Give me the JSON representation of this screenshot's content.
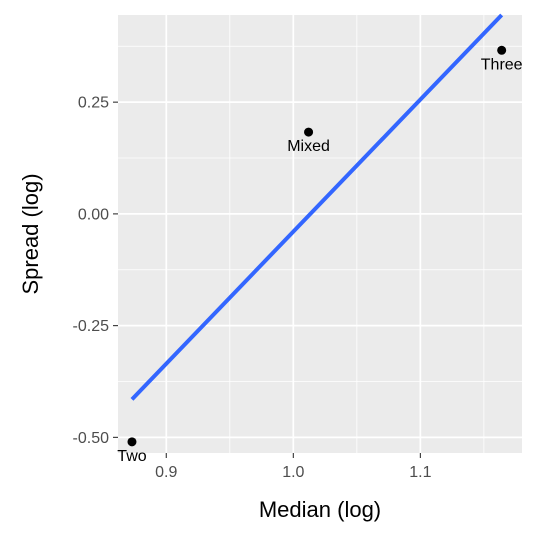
{
  "chart_data": {
    "type": "scatter",
    "xlabel": "Median (log)",
    "ylabel": "Spread (log)",
    "xlim": [
      0.862,
      1.18
    ],
    "ylim": [
      -0.535,
      0.445
    ],
    "x_ticks": [
      0.9,
      1.0,
      1.1
    ],
    "x_tick_labels": [
      "0.9",
      "1.0",
      "1.1"
    ],
    "y_ticks": [
      -0.5,
      -0.25,
      0.0,
      0.25
    ],
    "y_tick_labels": [
      "-0.50",
      "-0.25",
      "0.00",
      "0.25"
    ],
    "points": [
      {
        "label": "Two",
        "x": 0.873,
        "y": -0.51
      },
      {
        "label": "Mixed",
        "x": 1.012,
        "y": 0.183
      },
      {
        "label": "Three",
        "x": 1.164,
        "y": 0.366
      }
    ],
    "fit_line": {
      "x": [
        0.873,
        1.164
      ],
      "y": [
        -0.415,
        0.445
      ]
    },
    "grid": true,
    "colors": {
      "panel": "#ebebeb",
      "grid_major": "#ffffff",
      "fit_line": "#3366ff",
      "points": "#000000"
    }
  }
}
